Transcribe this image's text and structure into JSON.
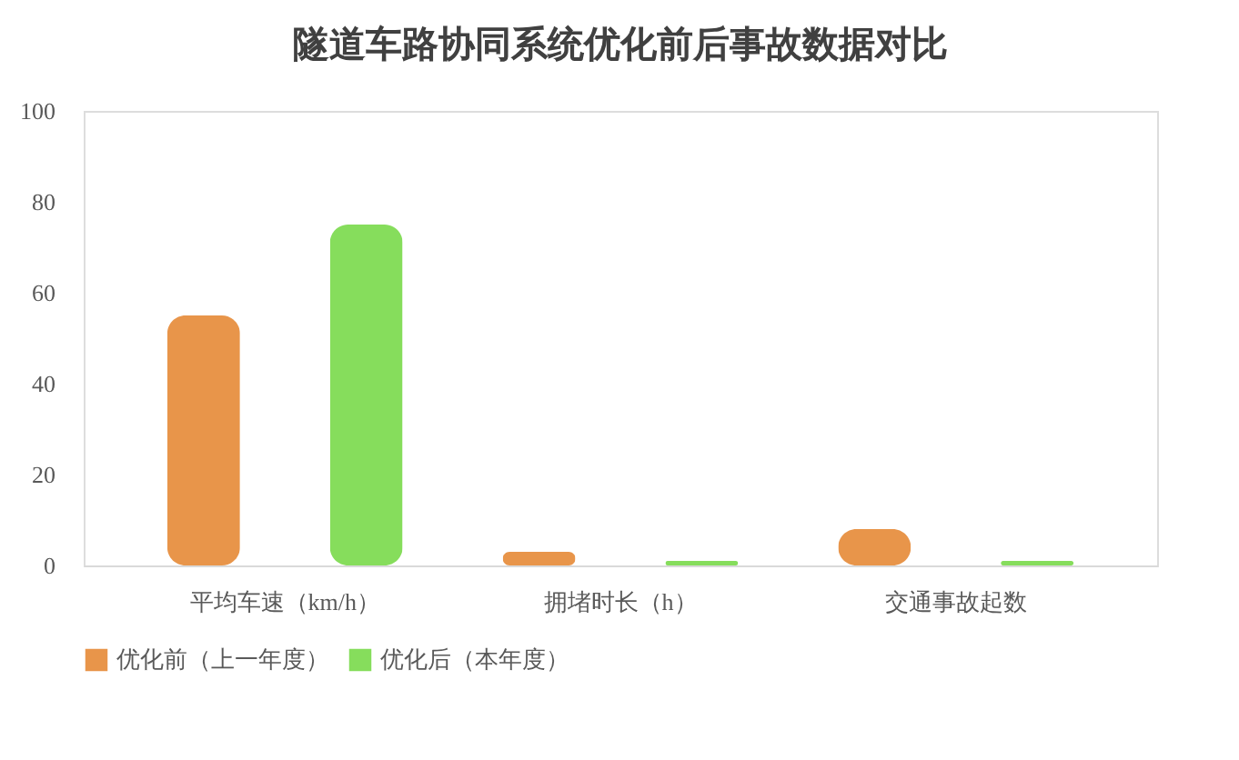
{
  "chart_data": {
    "type": "bar",
    "title": "隧道车路协同系统优化前后事故数据对比",
    "categories": [
      "平均车速（km/h）",
      "拥堵时长（h）",
      "交通事故起数"
    ],
    "series": [
      {
        "name": "优化前（上一年度）",
        "color": "#e8954a",
        "values": [
          55,
          3,
          8
        ]
      },
      {
        "name": "优化后（本年度）",
        "color": "#86dd5c",
        "values": [
          75,
          1,
          1
        ]
      }
    ],
    "ylim": [
      0,
      100
    ],
    "yticks": [
      0,
      20,
      40,
      60,
      80,
      100
    ],
    "grid": false,
    "legend": "bottom"
  }
}
